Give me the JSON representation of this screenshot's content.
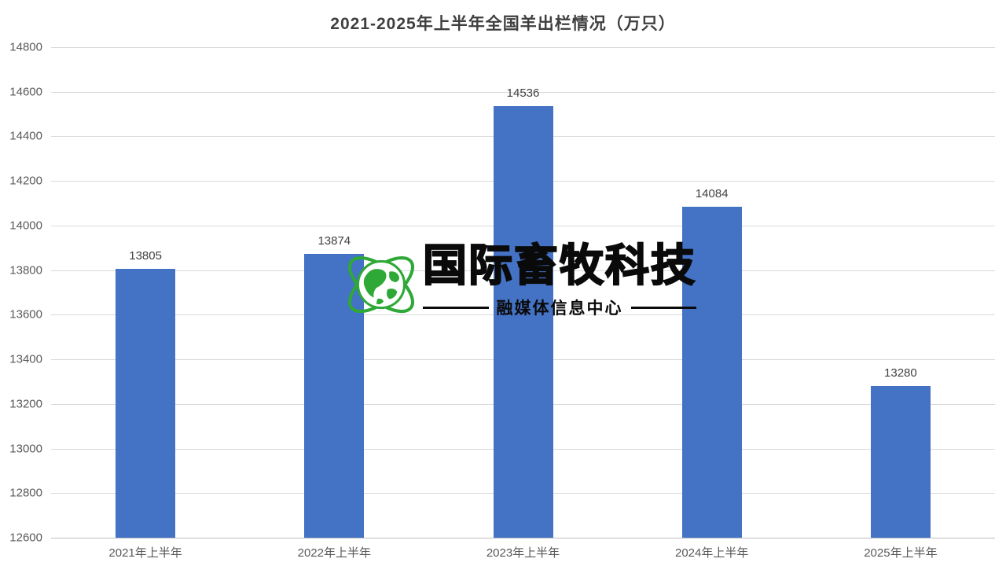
{
  "title": "2021-2025年上半年全国羊出栏情况（万只）",
  "chart_data": {
    "type": "bar",
    "title": "2021-2025年上半年全国羊出栏情况（万只）",
    "categories": [
      "2021年上半年",
      "2022年上半年",
      "2023年上半年",
      "2024年上半年",
      "2025年上半年"
    ],
    "values": [
      13805,
      13874,
      14536,
      14084,
      13280
    ],
    "xlabel": "",
    "ylabel": "",
    "ylim": [
      12600,
      14800
    ],
    "ytick_step": 200,
    "yticks": [
      12600,
      12800,
      13000,
      13200,
      13400,
      13600,
      13800,
      14000,
      14200,
      14400,
      14600,
      14800
    ],
    "grid": true,
    "legend": false,
    "value_labels_shown": true,
    "bar_color": "#4472c4"
  },
  "watermark": {
    "brand": "国际畜牧科技",
    "sub": "融媒体信息中心",
    "logo": "globe-orbit-icon",
    "logo_color": "#2ea836",
    "text_color": "#0a0a0a"
  },
  "colors": {
    "bar": "#4472c4",
    "gridline": "#d9d9d9",
    "axis_line": "#bfbfbf",
    "tick_text": "#595959",
    "title_text": "#3f3f3f",
    "value_label_text": "#404040"
  }
}
